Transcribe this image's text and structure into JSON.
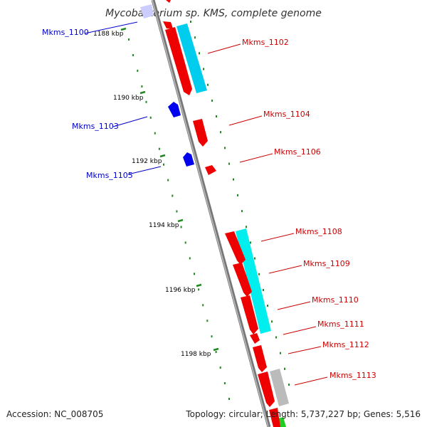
{
  "title": "Mycobacterium sp. KMS, complete genome",
  "footer": {
    "accession": "Accession: NC_008705",
    "topology": "Topology: circular; Length: 5,737,227 bp; Genes: 5,516"
  },
  "colors": {
    "backbone": "#888888",
    "plus_cds": "#ee0000",
    "minus_cds": "#0000ee",
    "blast_hit": "#00ccee",
    "label_plus": "#cc0000",
    "label_minus": "#0000cc",
    "ticks": "#228822"
  },
  "scale_labels": [
    "1188 kbp",
    "1190 kbp",
    "1192 kbp",
    "1194 kbp",
    "1196 kbp",
    "1198 kbp"
  ],
  "genes": [
    {
      "name": "Mkms_1100",
      "strand": "minus"
    },
    {
      "name": "Mkms_1102",
      "strand": "plus"
    },
    {
      "name": "Mkms_1103",
      "strand": "minus"
    },
    {
      "name": "Mkms_1104",
      "strand": "plus"
    },
    {
      "name": "Mkms_1105",
      "strand": "minus"
    },
    {
      "name": "Mkms_1106",
      "strand": "plus"
    },
    {
      "name": "Mkms_1108",
      "strand": "plus"
    },
    {
      "name": "Mkms_1109",
      "strand": "plus"
    },
    {
      "name": "Mkms_1110",
      "strand": "plus"
    },
    {
      "name": "Mkms_1111",
      "strand": "plus"
    },
    {
      "name": "Mkms_1112",
      "strand": "plus"
    },
    {
      "name": "Mkms_1113",
      "strand": "plus"
    }
  ]
}
